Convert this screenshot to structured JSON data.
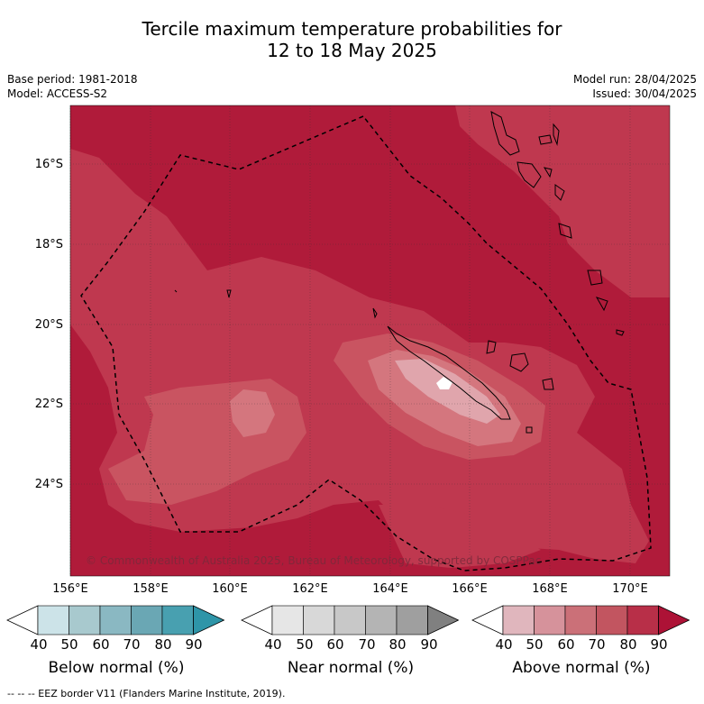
{
  "title": {
    "line1": "Tercile maximum temperature probabilities for",
    "line2": "12 to 18 May 2025"
  },
  "meta": {
    "base_period": "Base period: 1981-2018",
    "model": "Model: ACCESS-S2",
    "model_run": "Model run: 28/04/2025",
    "issued": "Issued: 30/04/2025"
  },
  "map": {
    "lat_labels": [
      "16°S",
      "18°S",
      "20°S",
      "22°S",
      "24°S"
    ],
    "lon_labels": [
      "156°E",
      "158°E",
      "160°E",
      "162°E",
      "164°E",
      "166°E",
      "168°E",
      "170°E"
    ],
    "copyright": "© Commonwealth of Australia 2025, Bureau of Meteorology, supported by COSPPac",
    "fill_colors": {
      "above_90": "#b01b3a",
      "above_80": "#bf384f",
      "above_70": "#c95461",
      "above_60": "#d4767e",
      "above_50": "#e0a5ac",
      "near": "#ffffff"
    }
  },
  "colorbars": {
    "ticks": [
      "40",
      "50",
      "60",
      "70",
      "80",
      "90"
    ],
    "below": {
      "title": "Below normal (%)",
      "colors": [
        "#cce3e8",
        "#a8c9ce",
        "#8ab8c2",
        "#6aa7b4",
        "#48a0b0",
        "#2e95a8"
      ]
    },
    "near": {
      "title": "Near normal (%)",
      "colors": [
        "#e6e6e6",
        "#d8d8d8",
        "#c8c8c8",
        "#b4b4b4",
        "#9f9f9f",
        "#808080"
      ]
    },
    "above": {
      "title": "Above normal (%)",
      "colors": [
        "#e0b6bd",
        "#d6929b",
        "#cb7078",
        "#c25560",
        "#b82f48",
        "#ad1236"
      ]
    }
  },
  "footnote": "--  --  -- EEZ border V11 (Flanders Marine Institute, 2019)."
}
